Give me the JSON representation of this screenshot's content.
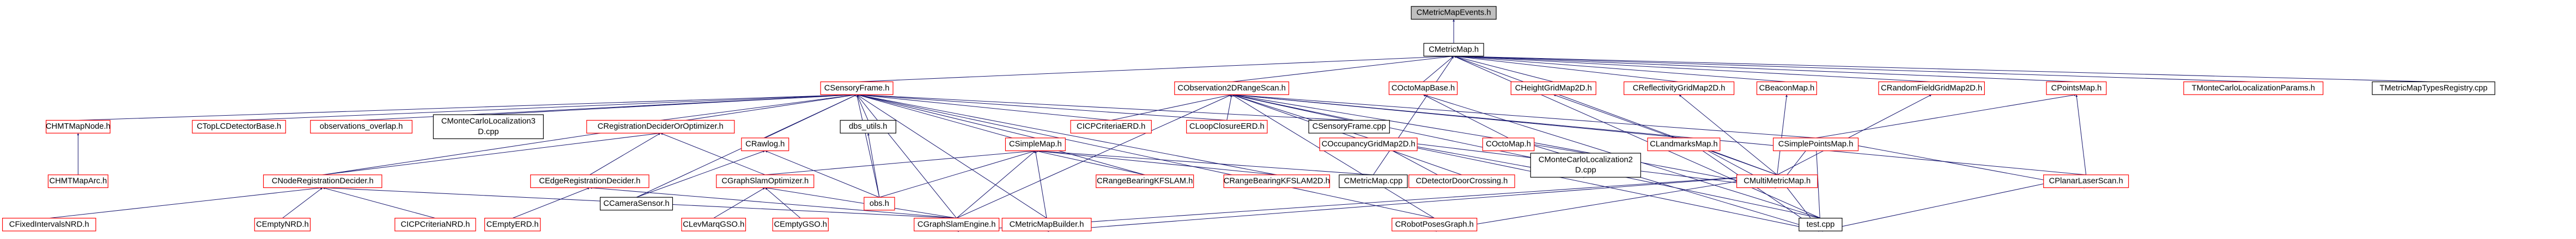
{
  "nodes": [
    {
      "lines": [
        "CMetricMapEvents.h"
      ],
      "border": "#000000",
      "fill": "#bfbfbf"
    },
    {
      "lines": [
        "CMetricMap.h"
      ],
      "border": "#000000"
    },
    {
      "lines": [
        "CSensoryFrame.h"
      ],
      "border": "#ff0000"
    },
    {
      "lines": [
        "CObservation2DRangeScan.h"
      ],
      "border": "#ff0000"
    },
    {
      "lines": [
        "COctoMapBase.h"
      ],
      "border": "#ff0000"
    },
    {
      "lines": [
        "CHeightGridMap2D.h"
      ],
      "border": "#ff0000"
    },
    {
      "lines": [
        "CReflectivityGridMap2D.h"
      ],
      "border": "#ff0000"
    },
    {
      "lines": [
        "CBeaconMap.h"
      ],
      "border": "#ff0000"
    },
    {
      "lines": [
        "CRandomFieldGridMap2D.h"
      ],
      "border": "#ff0000"
    },
    {
      "lines": [
        "CPointsMap.h"
      ],
      "border": "#ff0000"
    },
    {
      "lines": [
        "TMonteCarloLocalizationParams.h"
      ],
      "border": "#ff0000"
    },
    {
      "lines": [
        "TMetricMapTypesRegistry.cpp"
      ],
      "border": "#000000"
    },
    {
      "lines": [
        "CHMTMapNode.h"
      ],
      "border": "#ff0000"
    },
    {
      "lines": [
        "CTopLCDetectorBase.h"
      ],
      "border": "#ff0000"
    },
    {
      "lines": [
        "observations_overlap.h"
      ],
      "border": "#ff0000"
    },
    {
      "lines": [
        "CMonteCarloLocalization3",
        "D.cpp"
      ],
      "border": "#000000"
    },
    {
      "lines": [
        "CRegistrationDeciderOrOptimizer.h"
      ],
      "border": "#ff0000"
    },
    {
      "lines": [
        "dbs_utils.h"
      ],
      "border": "#000000"
    },
    {
      "lines": [
        "CICPCriteriaERD.h"
      ],
      "border": "#ff0000"
    },
    {
      "lines": [
        "CLoopClosureERD.h"
      ],
      "border": "#ff0000"
    },
    {
      "lines": [
        "CSensoryFrame.cpp"
      ],
      "border": "#000000"
    },
    {
      "lines": [
        "CRawlog.h"
      ],
      "border": "#ff0000"
    },
    {
      "lines": [
        "CSimpleMap.h"
      ],
      "border": "#ff0000"
    },
    {
      "lines": [
        "COccupancyGridMap2D.h"
      ],
      "border": "#ff0000"
    },
    {
      "lines": [
        "COctoMap.h"
      ],
      "border": "#ff0000"
    },
    {
      "lines": [
        "CLandmarksMap.h"
      ],
      "border": "#ff0000"
    },
    {
      "lines": [
        "CSimplePointsMap.h"
      ],
      "border": "#ff0000"
    },
    {
      "lines": [
        "CHMTMapArc.h"
      ],
      "border": "#ff0000"
    },
    {
      "lines": [
        "CNodeRegistrationDecider.h"
      ],
      "border": "#ff0000"
    },
    {
      "lines": [
        "CEdgeRegistrationDecider.h"
      ],
      "border": "#ff0000"
    },
    {
      "lines": [
        "CGraphSlamOptimizer.h"
      ],
      "border": "#ff0000"
    },
    {
      "lines": [
        "CCameraSensor.h"
      ],
      "border": "#000000"
    },
    {
      "lines": [
        "obs.h"
      ],
      "border": "#ff0000"
    },
    {
      "lines": [
        "CRangeBearingKFSLAM.h"
      ],
      "border": "#ff0000"
    },
    {
      "lines": [
        "CRangeBearingKFSLAM2D.h"
      ],
      "border": "#ff0000"
    },
    {
      "lines": [
        "CMetricMap.cpp"
      ],
      "border": "#000000"
    },
    {
      "lines": [
        "CMonteCarloLocalization2",
        "D.cpp"
      ],
      "border": "#000000"
    },
    {
      "lines": [
        "CDetectorDoorCrossing.h"
      ],
      "border": "#ff0000"
    },
    {
      "lines": [
        "CMultiMetricMap.h"
      ],
      "border": "#ff0000"
    },
    {
      "lines": [
        "CPlanarLaserScan.h"
      ],
      "border": "#ff0000"
    },
    {
      "lines": [
        "CFixedIntervalsNRD.h"
      ],
      "border": "#ff0000"
    },
    {
      "lines": [
        "CEmptyNRD.h"
      ],
      "border": "#ff0000"
    },
    {
      "lines": [
        "CICPCriteriaNRD.h"
      ],
      "border": "#ff0000"
    },
    {
      "lines": [
        "CEmptyERD.h"
      ],
      "border": "#ff0000"
    },
    {
      "lines": [
        "CLevMarqGSO.h"
      ],
      "border": "#ff0000"
    },
    {
      "lines": [
        "CEmptyGSO.h"
      ],
      "border": "#ff0000"
    },
    {
      "lines": [
        "CGraphSlamEngine.h"
      ],
      "border": "#ff0000"
    },
    {
      "lines": [
        "CMetricMapBuilder.h"
      ],
      "border": "#ff0000"
    },
    {
      "lines": [
        "CRobotPosesGraph.h"
      ],
      "border": "#ff0000"
    },
    {
      "lines": [
        "test.cpp"
      ],
      "border": "#000000"
    }
  ]
}
